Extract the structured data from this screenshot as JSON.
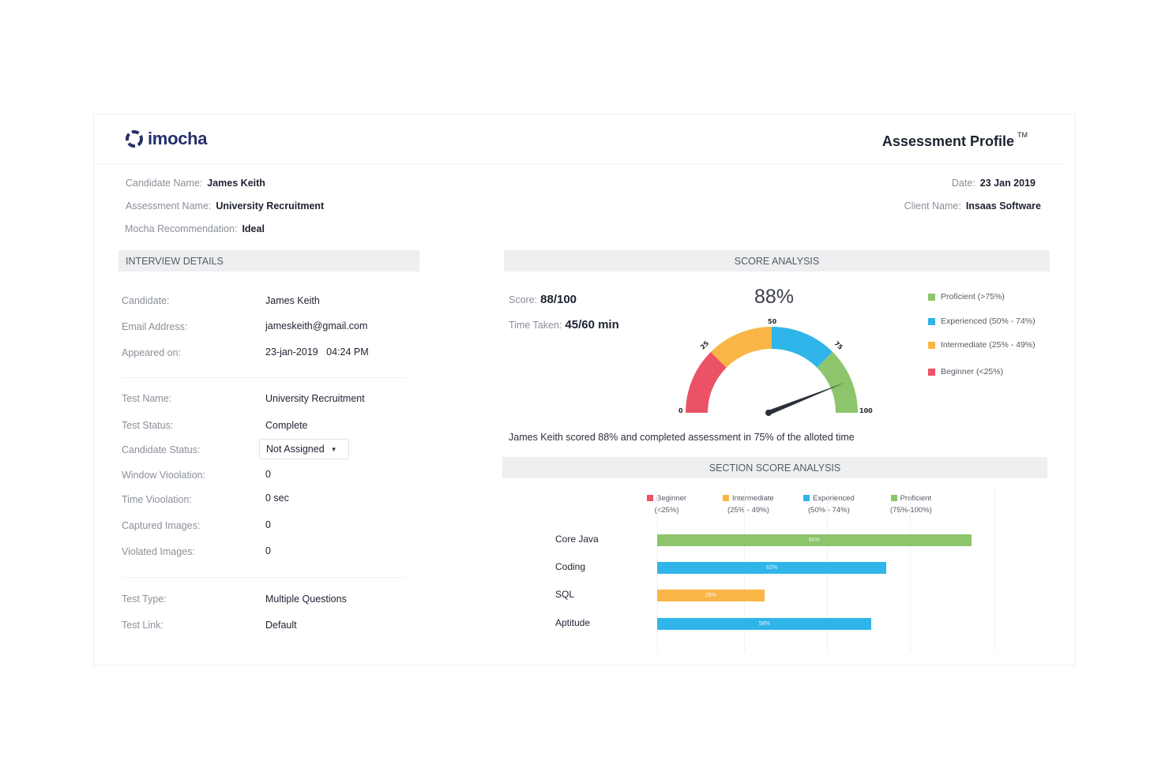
{
  "brand": {
    "name": "imocha"
  },
  "header": {
    "title": "Assessment Profile",
    "tm": "TM"
  },
  "summary": {
    "candidate_name_label": "Candidate Name:",
    "candidate_name": "James Keith",
    "assessment_name_label": "Assessment Name:",
    "assessment_name": "University Recruitment",
    "recommendation_label": "Mocha Recommendation:",
    "recommendation": "Ideal",
    "date_label": "Date:",
    "date": "23 Jan 2019",
    "client_label": "Client Name:",
    "client": "Insaas Software"
  },
  "interview": {
    "title": "INTERVIEW DETAILS",
    "rows": [
      {
        "label": "Candidate:",
        "value": "James Keith"
      },
      {
        "label": "Email Address:",
        "value": "jameskeith@gmail.com"
      },
      {
        "label": "Appeared on:",
        "value": "23-jan-2019   04:24 PM"
      },
      {
        "label": "Test Name:",
        "value": "University Recruitment"
      },
      {
        "label": "Test Status:",
        "value": "Complete"
      },
      {
        "label": "Candidate Status:",
        "value": "Not Assigned"
      },
      {
        "label": "Window Vioolation:",
        "value": "0"
      },
      {
        "label": "Time Vioolation:",
        "value": "0 sec"
      },
      {
        "label": "Captured Images:",
        "value": "0"
      },
      {
        "label": "Violated Images:",
        "value": "0"
      },
      {
        "label": "Test Type:",
        "value": "Multiple Questions"
      },
      {
        "label": "Test Link:",
        "value": "Default"
      }
    ]
  },
  "score": {
    "title": "SCORE ANALYSIS",
    "score_label": "Score:",
    "score": "88/100",
    "time_label": "Time Taken:",
    "time": "45/60 min",
    "percent": "88%",
    "gauge_value": 88,
    "gauge_ticks": [
      "0",
      "25",
      "50",
      "75",
      "100"
    ],
    "legend": [
      {
        "label": "Proficient (>75%)",
        "color": "#8cc56b"
      },
      {
        "label": "Experienced (50% - 74%)",
        "color": "#2fb5ea"
      },
      {
        "label": "Intermediate (25% - 49%)",
        "color": "#f9b647"
      },
      {
        "label": "Beginner (<25%)",
        "color": "#ec5266"
      }
    ],
    "summary_text": "James Keith scored 88% and completed assessment in 75% of the alloted time"
  },
  "section": {
    "title": "SECTION SCORE ANALYSIS",
    "legend": [
      {
        "name": "Beginner",
        "range": "(<25%)",
        "color": "#ec5266"
      },
      {
        "name": "Intermediate",
        "range": "(25% - 49%)",
        "color": "#f9b647"
      },
      {
        "name": "Experienced",
        "range": "(50% - 74%)",
        "color": "#2fb5ea"
      },
      {
        "name": "Proficient",
        "range": "(75%-100%)",
        "color": "#8cc56b"
      }
    ]
  },
  "chart_data": {
    "type": "bar",
    "orientation": "horizontal",
    "categories": [
      "Core Java",
      "Coding",
      "SQL",
      "Aptitude"
    ],
    "values": [
      85,
      62,
      29,
      58
    ],
    "value_labels": [
      "85%",
      "62%",
      "29%",
      "58%"
    ],
    "colors": [
      "#8cc56b",
      "#2fb5ea",
      "#f9b647",
      "#2fb5ea"
    ],
    "xlim": [
      0,
      100
    ]
  }
}
